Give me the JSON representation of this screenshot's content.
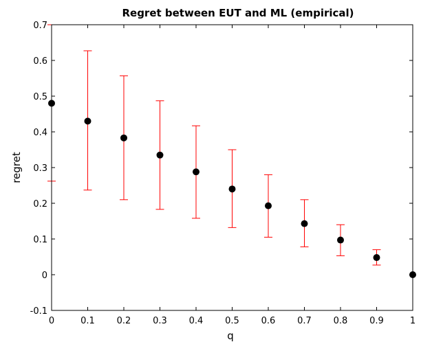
{
  "chart_data": {
    "type": "scatter",
    "title": "Regret between EUT and ML (empirical)",
    "xlabel": "q",
    "ylabel": "regret",
    "xlim": [
      0,
      1
    ],
    "ylim": [
      -0.1,
      0.7
    ],
    "grid": false,
    "x_ticks": [
      "0",
      "0.1",
      "0.2",
      "0.3",
      "0.4",
      "0.5",
      "0.6",
      "0.7",
      "0.8",
      "0.9",
      "1"
    ],
    "y_ticks": [
      "-0.1",
      "0",
      "0.1",
      "0.2",
      "0.3",
      "0.4",
      "0.5",
      "0.6",
      "0.7"
    ],
    "series": [
      {
        "marker_color": "#000000",
        "error_bar_color": "#ff0000",
        "x": [
          0,
          0.1,
          0.2,
          0.3,
          0.4,
          0.5,
          0.6,
          0.7,
          0.8,
          0.9,
          1
        ],
        "y": [
          0.48,
          0.43,
          0.383,
          0.335,
          0.288,
          0.24,
          0.193,
          0.143,
          0.097,
          0.048,
          0
        ],
        "lower": [
          0.262,
          0.237,
          0.21,
          0.183,
          0.158,
          0.132,
          0.105,
          0.078,
          0.053,
          0.027,
          0
        ],
        "upper": [
          0.7,
          0.627,
          0.557,
          0.487,
          0.417,
          0.35,
          0.28,
          0.21,
          0.14,
          0.07,
          0
        ]
      }
    ]
  }
}
